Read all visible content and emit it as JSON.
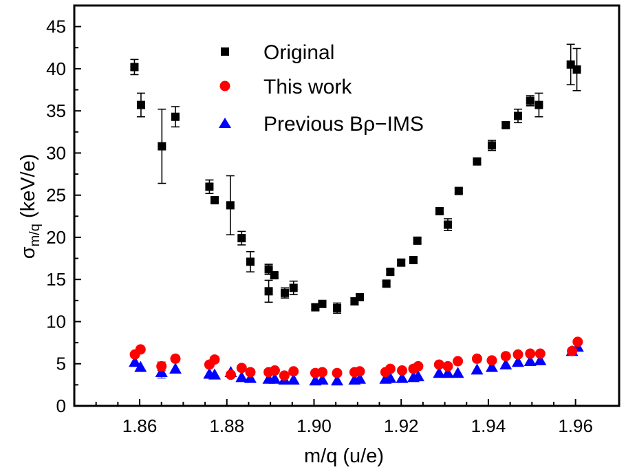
{
  "chart_data": {
    "type": "scatter",
    "title": "",
    "xlabel": "m/q (u/e)",
    "ylabel_main": "σ",
    "ylabel_sub": "m/q",
    "ylabel_unit": " (keV/e)",
    "xlim": [
      1.845,
      1.97
    ],
    "ylim": [
      0,
      47.5
    ],
    "x_ticks": [
      "1.86",
      "1.88",
      "1.90",
      "1.92",
      "1.94",
      "1.96"
    ],
    "y_ticks": [
      "0",
      "5",
      "10",
      "15",
      "20",
      "25",
      "30",
      "35",
      "40",
      "45"
    ],
    "grid": false,
    "legend_position": "top-center",
    "series": [
      {
        "name": "Original",
        "marker": "square",
        "color": "#000000",
        "points": [
          [
            1.8588,
            40.2,
            0.9
          ],
          [
            1.8603,
            35.7,
            1.4
          ],
          [
            1.8651,
            30.8,
            4.4
          ],
          [
            1.8682,
            34.3,
            1.2
          ],
          [
            1.876,
            26.0,
            0.8
          ],
          [
            1.8772,
            24.4,
            0.3
          ],
          [
            1.8808,
            23.8,
            3.5
          ],
          [
            1.8834,
            19.9,
            0.8
          ],
          [
            1.8854,
            17.1,
            1.2
          ],
          [
            1.8896,
            16.2,
            0.6
          ],
          [
            1.8896,
            13.6,
            1.3
          ],
          [
            1.8909,
            15.5,
            0.3
          ],
          [
            1.8933,
            13.4,
            0.6
          ],
          [
            1.8953,
            14.0,
            0.8
          ],
          [
            1.9003,
            11.7,
            0.3
          ],
          [
            1.9019,
            12.1,
            0.3
          ],
          [
            1.9053,
            11.6,
            0.6
          ],
          [
            1.9093,
            12.4,
            0.4
          ],
          [
            1.9105,
            12.9,
            0.3
          ],
          [
            1.9166,
            14.5,
            0.3
          ],
          [
            1.9175,
            15.9,
            0.3
          ],
          [
            1.92,
            17.0,
            0.3
          ],
          [
            1.9228,
            17.3,
            0.3
          ],
          [
            1.9237,
            19.6,
            0.3
          ],
          [
            1.9288,
            23.1,
            0.3
          ],
          [
            1.9307,
            21.5,
            0.7
          ],
          [
            1.9332,
            25.5,
            0.3
          ],
          [
            1.9374,
            29.0,
            0.3
          ],
          [
            1.9408,
            30.9,
            0.6
          ],
          [
            1.944,
            33.3,
            0.3
          ],
          [
            1.9468,
            34.4,
            0.8
          ],
          [
            1.9496,
            36.2,
            0.6
          ],
          [
            1.9516,
            35.7,
            1.4
          ],
          [
            1.9589,
            40.5,
            2.4
          ],
          [
            1.9603,
            39.9,
            2.5
          ]
        ]
      },
      {
        "name": "This work",
        "marker": "circle",
        "color": "#ff0000",
        "points": [
          [
            1.8589,
            6.1,
            0
          ],
          [
            1.8602,
            6.7,
            0
          ],
          [
            1.865,
            4.7,
            0.5
          ],
          [
            1.8682,
            5.6,
            0
          ],
          [
            1.876,
            4.9,
            0
          ],
          [
            1.8772,
            5.5,
            0
          ],
          [
            1.8809,
            3.7,
            0
          ],
          [
            1.8834,
            4.5,
            0
          ],
          [
            1.8854,
            4.0,
            0
          ],
          [
            1.8896,
            4.0,
            0
          ],
          [
            1.891,
            4.2,
            0
          ],
          [
            1.8932,
            3.6,
            0
          ],
          [
            1.8953,
            4.1,
            0
          ],
          [
            1.9003,
            3.9,
            0
          ],
          [
            1.9019,
            4.0,
            0
          ],
          [
            1.9053,
            3.9,
            0
          ],
          [
            1.9093,
            4.0,
            0
          ],
          [
            1.9105,
            4.1,
            0
          ],
          [
            1.9164,
            4.0,
            0
          ],
          [
            1.9175,
            4.4,
            0
          ],
          [
            1.9202,
            4.2,
            0
          ],
          [
            1.9228,
            4.4,
            0
          ],
          [
            1.9239,
            4.7,
            0
          ],
          [
            1.9287,
            4.9,
            0
          ],
          [
            1.9307,
            4.7,
            0
          ],
          [
            1.933,
            5.3,
            0
          ],
          [
            1.9374,
            5.6,
            0
          ],
          [
            1.9408,
            5.4,
            0
          ],
          [
            1.944,
            5.9,
            0
          ],
          [
            1.9468,
            6.1,
            0
          ],
          [
            1.9496,
            6.2,
            0
          ],
          [
            1.9519,
            6.2,
            0
          ],
          [
            1.9592,
            6.5,
            0
          ],
          [
            1.9605,
            7.6,
            0
          ]
        ]
      },
      {
        "name": "Previous Bρ−IMS",
        "marker": "triangle",
        "color": "#0000ff",
        "points": [
          [
            1.8589,
            5.2,
            0
          ],
          [
            1.8602,
            4.6,
            0
          ],
          [
            1.865,
            4.0,
            0.7
          ],
          [
            1.8682,
            4.4,
            0
          ],
          [
            1.876,
            3.8,
            0
          ],
          [
            1.8772,
            3.7,
            0
          ],
          [
            1.8809,
            4.0,
            0
          ],
          [
            1.8834,
            3.4,
            0
          ],
          [
            1.8854,
            3.3,
            0
          ],
          [
            1.8896,
            3.2,
            0
          ],
          [
            1.891,
            3.2,
            0
          ],
          [
            1.8932,
            3.1,
            0
          ],
          [
            1.8953,
            3.1,
            0
          ],
          [
            1.9003,
            3.0,
            0
          ],
          [
            1.9019,
            3.1,
            0
          ],
          [
            1.9053,
            3.0,
            0
          ],
          [
            1.9093,
            3.1,
            0
          ],
          [
            1.9105,
            3.2,
            0
          ],
          [
            1.9164,
            3.2,
            0
          ],
          [
            1.9175,
            3.3,
            0
          ],
          [
            1.9202,
            3.3,
            0
          ],
          [
            1.9228,
            3.4,
            0
          ],
          [
            1.9239,
            3.5,
            0
          ],
          [
            1.9287,
            3.9,
            0
          ],
          [
            1.9307,
            3.9,
            0
          ],
          [
            1.933,
            3.9,
            0
          ],
          [
            1.9374,
            4.3,
            0
          ],
          [
            1.9408,
            4.6,
            0
          ],
          [
            1.944,
            4.9,
            0
          ],
          [
            1.9468,
            5.2,
            0
          ],
          [
            1.9496,
            5.3,
            0
          ],
          [
            1.9519,
            5.4,
            0
          ],
          [
            1.9592,
            6.5,
            0
          ],
          [
            1.9605,
            7.0,
            0
          ]
        ]
      }
    ]
  }
}
